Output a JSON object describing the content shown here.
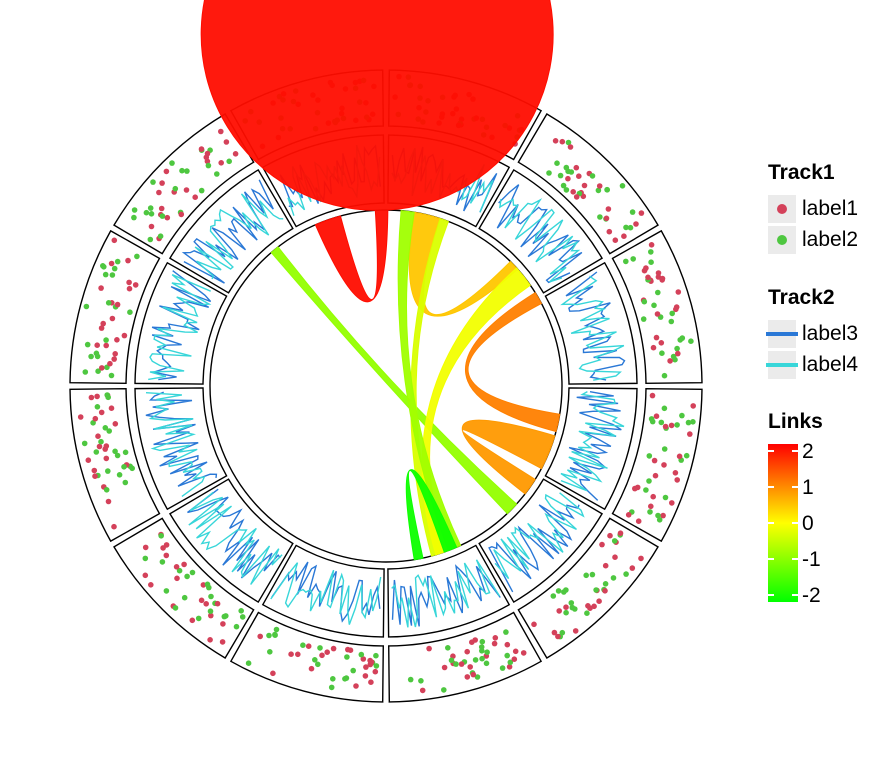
{
  "chart_data": {
    "type": "circos",
    "sectors": 12,
    "tracks": [
      {
        "name": "Track1",
        "kind": "scatter",
        "legend": [
          {
            "label": "label1",
            "color": "#d4415a"
          },
          {
            "label": "label2",
            "color": "#4ec740"
          }
        ]
      },
      {
        "name": "Track2",
        "kind": "line",
        "legend": [
          {
            "label": "label3",
            "color": "#2a78d6"
          },
          {
            "label": "label4",
            "color": "#38d6d9"
          }
        ]
      }
    ],
    "links": {
      "title": "Links",
      "colorbar_ticks": [
        "2",
        "1",
        "0",
        "-1",
        "-2"
      ],
      "colorbar_range": [
        -2,
        2
      ],
      "items": [
        {
          "from": [
            11.2,
            11.5
          ],
          "to": [
            11.9,
            12.0
          ],
          "value": 1.9
        },
        {
          "from": [
            10.65,
            10.75
          ],
          "to": [
            4.4,
            4.55
          ],
          "value": -0.85
        },
        {
          "from": [
            3.55,
            3.95
          ],
          "to": [
            4.05,
            4.25
          ],
          "value": 0.8
        },
        {
          "from": [
            1.5,
            1.62
          ],
          "to": [
            0.3,
            0.6
          ],
          "value": 0.45
        },
        {
          "from": [
            5.35,
            5.5
          ],
          "to": [
            0.6,
            0.7
          ],
          "value": -0.3
        },
        {
          "from": [
            5.3,
            5.45
          ],
          "to": [
            1.6,
            1.85
          ],
          "value": -0.1
        },
        {
          "from": [
            5.15,
            5.3
          ],
          "to": [
            0.15,
            0.3
          ],
          "value": -0.75
        },
        {
          "from": [
            5.6,
            5.7
          ],
          "to": [
            5.2,
            5.35
          ],
          "value": -1.9
        },
        {
          "from": [
            1.95,
            2.05
          ],
          "to": [
            3.3,
            3.5
          ],
          "value": 1.0
        }
      ]
    }
  },
  "legend": {
    "track1_title": "Track1",
    "track1_items": [
      "label1",
      "label2"
    ],
    "track2_title": "Track2",
    "track2_items": [
      "label3",
      "label4"
    ],
    "links_title": "Links",
    "ticks": [
      "2",
      "1",
      "0",
      "-1",
      "-2"
    ]
  }
}
